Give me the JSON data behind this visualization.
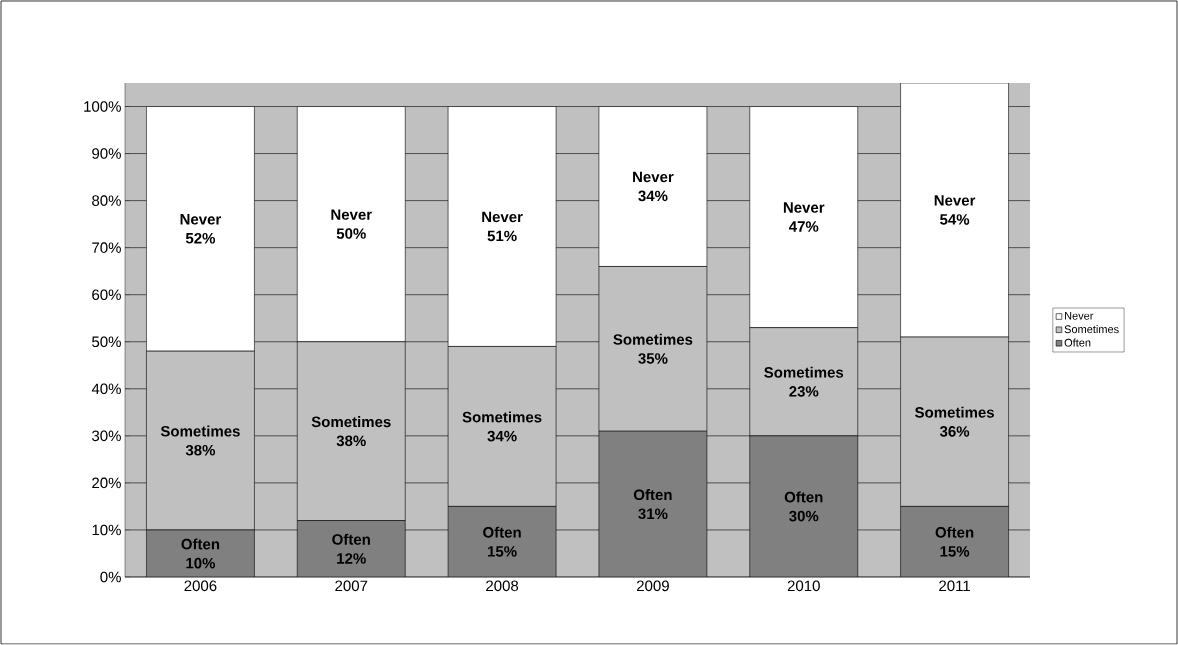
{
  "chart_data": {
    "type": "bar",
    "stacked": true,
    "categories": [
      "2006",
      "2007",
      "2008",
      "2009",
      "2010",
      "2011"
    ],
    "series": [
      {
        "name": "Often",
        "color": "#808080",
        "values": [
          10,
          12,
          15,
          31,
          30,
          15
        ],
        "value_labels": [
          "10%",
          "12%",
          "15%",
          "31%",
          "30%",
          "15%"
        ]
      },
      {
        "name": "Sometimes",
        "color": "#c0c0c0",
        "values": [
          38,
          38,
          34,
          35,
          23,
          36
        ],
        "value_labels": [
          "38%",
          "38%",
          "34%",
          "35%",
          "23%",
          "36%"
        ]
      },
      {
        "name": "Never",
        "color": "#ffffff",
        "values": [
          52,
          50,
          51,
          34,
          47,
          54
        ],
        "value_labels": [
          "52%",
          "50%",
          "51%",
          "34%",
          "47%",
          "54%"
        ]
      }
    ],
    "ylim": [
      0,
      105
    ],
    "yticks": [
      {
        "value": 0,
        "label": "0%"
      },
      {
        "value": 10,
        "label": "10%"
      },
      {
        "value": 20,
        "label": "20%"
      },
      {
        "value": 30,
        "label": "30%"
      },
      {
        "value": 40,
        "label": "40%"
      },
      {
        "value": 50,
        "label": "50%"
      },
      {
        "value": 60,
        "label": "60%"
      },
      {
        "value": 70,
        "label": "70%"
      },
      {
        "value": 80,
        "label": "80%"
      },
      {
        "value": 90,
        "label": "90%"
      },
      {
        "value": 100,
        "label": "100%"
      }
    ],
    "grid": "y",
    "legend": "right"
  }
}
